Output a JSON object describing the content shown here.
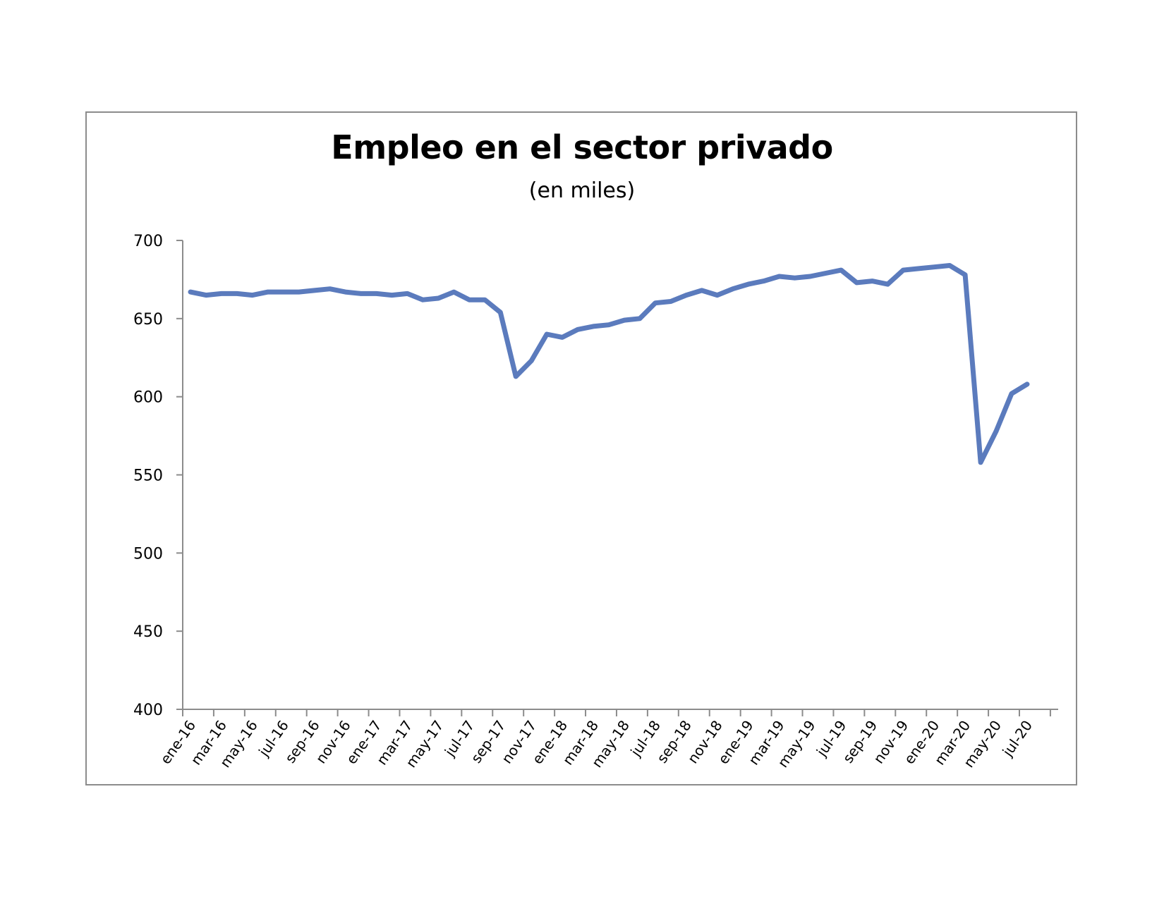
{
  "chart_data": {
    "type": "line",
    "title": "Empleo en el sector privado",
    "subtitle": "(en miles)",
    "xlabel": "",
    "ylabel": "",
    "ylim": [
      400,
      700
    ],
    "yticks": [
      400,
      450,
      500,
      550,
      600,
      650,
      700
    ],
    "x_tick_labels": [
      "ene-16",
      "mar-16",
      "may-16",
      "jul-16",
      "sep-16",
      "nov-16",
      "ene-17",
      "mar-17",
      "may-17",
      "jul-17",
      "sep-17",
      "nov-17",
      "ene-18",
      "mar-18",
      "may-18",
      "jul-18",
      "sep-18",
      "nov-18",
      "ene-19",
      "mar-19",
      "may-19",
      "jul-19",
      "sep-19",
      "nov-19",
      "ene-20",
      "mar-20",
      "may-20",
      "jul-20"
    ],
    "grid": false,
    "legend": "none",
    "series": [
      {
        "color": "#5b7bbd",
        "x": [
          "ene-16",
          "feb-16",
          "mar-16",
          "abr-16",
          "may-16",
          "jun-16",
          "jul-16",
          "ago-16",
          "sep-16",
          "oct-16",
          "nov-16",
          "dic-16",
          "ene-17",
          "feb-17",
          "mar-17",
          "abr-17",
          "may-17",
          "jun-17",
          "jul-17",
          "ago-17",
          "sep-17",
          "oct-17",
          "nov-17",
          "dic-17",
          "ene-18",
          "feb-18",
          "mar-18",
          "abr-18",
          "may-18",
          "jun-18",
          "jul-18",
          "ago-18",
          "sep-18",
          "oct-18",
          "nov-18",
          "dic-18",
          "ene-19",
          "feb-19",
          "mar-19",
          "abr-19",
          "may-19",
          "jun-19",
          "jul-19",
          "ago-19",
          "sep-19",
          "oct-19",
          "nov-19",
          "dic-19",
          "ene-20",
          "feb-20",
          "mar-20",
          "abr-20",
          "may-20",
          "jun-20",
          "jul-20"
        ],
        "values": [
          667,
          665,
          666,
          666,
          665,
          667,
          667,
          667,
          668,
          669,
          667,
          666,
          666,
          665,
          666,
          662,
          663,
          667,
          662,
          662,
          654,
          613,
          623,
          640,
          638,
          643,
          645,
          646,
          649,
          650,
          660,
          661,
          665,
          668,
          665,
          669,
          672,
          674,
          677,
          676,
          677,
          679,
          681,
          673,
          674,
          672,
          681,
          682,
          683,
          684,
          678,
          558,
          578,
          602,
          608
        ]
      }
    ]
  }
}
